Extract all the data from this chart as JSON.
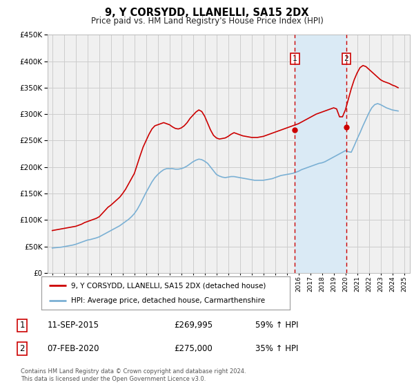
{
  "title": "9, Y CORSYDD, LLANELLI, SA15 2DX",
  "subtitle": "Price paid vs. HM Land Registry's House Price Index (HPI)",
  "ylim": [
    0,
    450000
  ],
  "yticks": [
    0,
    50000,
    100000,
    150000,
    200000,
    250000,
    300000,
    350000,
    400000,
    450000
  ],
  "xlim_start": 1994.6,
  "xlim_end": 2025.5,
  "background_color": "#ffffff",
  "grid_color": "#cccccc",
  "plot_bg_color": "#f0f0f0",
  "line1_color": "#cc0000",
  "line2_color": "#7ab0d4",
  "line1_label": "9, Y CORSYDD, LLANELLI, SA15 2DX (detached house)",
  "line2_label": "HPI: Average price, detached house, Carmarthenshire",
  "marker1_year": 2015.7,
  "marker1_price": 269995,
  "marker1_label": "1",
  "marker1_date": "11-SEP-2015",
  "marker1_price_str": "£269,995",
  "marker1_hpi": "59% ↑ HPI",
  "marker2_year": 2020.08,
  "marker2_price": 275000,
  "marker2_label": "2",
  "marker2_date": "07-FEB-2020",
  "marker2_price_str": "£275,000",
  "marker2_hpi": "35% ↑ HPI",
  "shade_color": "#daeaf5",
  "dashed_color": "#cc0000",
  "footnote": "Contains HM Land Registry data © Crown copyright and database right 2024.\nThis data is licensed under the Open Government Licence v3.0.",
  "hpi_data_years": [
    1995.0,
    1995.25,
    1995.5,
    1995.75,
    1996.0,
    1996.25,
    1996.5,
    1996.75,
    1997.0,
    1997.25,
    1997.5,
    1997.75,
    1998.0,
    1998.25,
    1998.5,
    1998.75,
    1999.0,
    1999.25,
    1999.5,
    1999.75,
    2000.0,
    2000.25,
    2000.5,
    2000.75,
    2001.0,
    2001.25,
    2001.5,
    2001.75,
    2002.0,
    2002.25,
    2002.5,
    2002.75,
    2003.0,
    2003.25,
    2003.5,
    2003.75,
    2004.0,
    2004.25,
    2004.5,
    2004.75,
    2005.0,
    2005.25,
    2005.5,
    2005.75,
    2006.0,
    2006.25,
    2006.5,
    2006.75,
    2007.0,
    2007.25,
    2007.5,
    2007.75,
    2008.0,
    2008.25,
    2008.5,
    2008.75,
    2009.0,
    2009.25,
    2009.5,
    2009.75,
    2010.0,
    2010.25,
    2010.5,
    2010.75,
    2011.0,
    2011.25,
    2011.5,
    2011.75,
    2012.0,
    2012.25,
    2012.5,
    2012.75,
    2013.0,
    2013.25,
    2013.5,
    2013.75,
    2014.0,
    2014.25,
    2014.5,
    2014.75,
    2015.0,
    2015.25,
    2015.5,
    2015.75,
    2016.0,
    2016.25,
    2016.5,
    2016.75,
    2017.0,
    2017.25,
    2017.5,
    2017.75,
    2018.0,
    2018.25,
    2018.5,
    2018.75,
    2019.0,
    2019.25,
    2019.5,
    2019.75,
    2020.0,
    2020.25,
    2020.5,
    2020.75,
    2021.0,
    2021.25,
    2021.5,
    2021.75,
    2022.0,
    2022.25,
    2022.5,
    2022.75,
    2023.0,
    2023.25,
    2023.5,
    2023.75,
    2024.0,
    2024.25,
    2024.5
  ],
  "hpi_values": [
    47000,
    47500,
    48000,
    48500,
    49500,
    50500,
    51500,
    52500,
    54000,
    56000,
    58000,
    60000,
    62000,
    63000,
    64500,
    66000,
    68000,
    71000,
    74000,
    77000,
    80000,
    83000,
    86000,
    89000,
    93000,
    97000,
    101000,
    106000,
    112000,
    120000,
    130000,
    141000,
    152000,
    162000,
    172000,
    180000,
    186000,
    191000,
    195000,
    197000,
    197000,
    197000,
    196000,
    196000,
    197000,
    199000,
    202000,
    206000,
    210000,
    213000,
    215000,
    214000,
    211000,
    207000,
    200000,
    193000,
    186000,
    183000,
    181000,
    180000,
    181000,
    182000,
    182000,
    181000,
    180000,
    179000,
    178000,
    177000,
    176000,
    175000,
    175000,
    175000,
    175000,
    176000,
    177000,
    178000,
    180000,
    182000,
    184000,
    185000,
    186000,
    187000,
    188000,
    190000,
    192000,
    195000,
    197000,
    199000,
    201000,
    203000,
    205000,
    207000,
    208000,
    210000,
    213000,
    216000,
    219000,
    222000,
    225000,
    228000,
    231000,
    229000,
    228000,
    240000,
    253000,
    265000,
    278000,
    290000,
    302000,
    312000,
    318000,
    320000,
    318000,
    315000,
    312000,
    310000,
    308000,
    307000,
    306000
  ],
  "red_line_data_years": [
    1995.0,
    1995.25,
    1995.5,
    1995.75,
    1996.0,
    1996.25,
    1996.5,
    1996.75,
    1997.0,
    1997.25,
    1997.5,
    1997.75,
    1998.0,
    1998.25,
    1998.5,
    1998.75,
    1999.0,
    1999.25,
    1999.5,
    1999.75,
    2000.0,
    2000.25,
    2000.5,
    2000.75,
    2001.0,
    2001.25,
    2001.5,
    2001.75,
    2002.0,
    2002.25,
    2002.5,
    2002.75,
    2003.0,
    2003.25,
    2003.5,
    2003.75,
    2004.0,
    2004.25,
    2004.5,
    2004.75,
    2005.0,
    2005.25,
    2005.5,
    2005.75,
    2006.0,
    2006.25,
    2006.5,
    2006.75,
    2007.0,
    2007.25,
    2007.5,
    2007.75,
    2008.0,
    2008.25,
    2008.5,
    2008.75,
    2009.0,
    2009.25,
    2009.5,
    2009.75,
    2010.0,
    2010.25,
    2010.5,
    2010.75,
    2011.0,
    2011.25,
    2011.5,
    2011.75,
    2012.0,
    2012.25,
    2012.5,
    2012.75,
    2013.0,
    2013.25,
    2013.5,
    2013.75,
    2014.0,
    2014.25,
    2014.5,
    2014.75,
    2015.0,
    2015.25,
    2015.5,
    2015.75,
    2016.0,
    2016.25,
    2016.5,
    2016.75,
    2017.0,
    2017.25,
    2017.5,
    2017.75,
    2018.0,
    2018.25,
    2018.5,
    2018.75,
    2019.0,
    2019.25,
    2019.5,
    2019.75,
    2020.0,
    2020.25,
    2020.5,
    2020.75,
    2021.0,
    2021.25,
    2021.5,
    2021.75,
    2022.0,
    2022.25,
    2022.5,
    2022.75,
    2023.0,
    2023.25,
    2023.5,
    2023.75,
    2024.0,
    2024.25,
    2024.5
  ],
  "red_line_values": [
    80000,
    81000,
    82000,
    83000,
    84000,
    85000,
    86000,
    87000,
    88000,
    90000,
    92000,
    95000,
    97000,
    99000,
    101000,
    103000,
    106000,
    112000,
    118000,
    124000,
    128000,
    133000,
    138000,
    143000,
    150000,
    158000,
    168000,
    178000,
    188000,
    205000,
    222000,
    238000,
    250000,
    262000,
    272000,
    278000,
    280000,
    282000,
    284000,
    282000,
    280000,
    276000,
    273000,
    272000,
    274000,
    278000,
    284000,
    292000,
    298000,
    304000,
    308000,
    305000,
    296000,
    283000,
    270000,
    260000,
    255000,
    253000,
    254000,
    255000,
    258000,
    262000,
    265000,
    263000,
    261000,
    259000,
    258000,
    257000,
    256000,
    256000,
    256000,
    257000,
    258000,
    260000,
    262000,
    264000,
    266000,
    268000,
    270000,
    272000,
    274000,
    276000,
    278000,
    280000,
    282000,
    285000,
    288000,
    291000,
    294000,
    297000,
    300000,
    302000,
    304000,
    306000,
    308000,
    310000,
    312000,
    310000,
    295000,
    295000,
    308000,
    328000,
    348000,
    365000,
    378000,
    388000,
    392000,
    390000,
    385000,
    380000,
    375000,
    370000,
    365000,
    362000,
    360000,
    358000,
    355000,
    353000,
    350000
  ]
}
